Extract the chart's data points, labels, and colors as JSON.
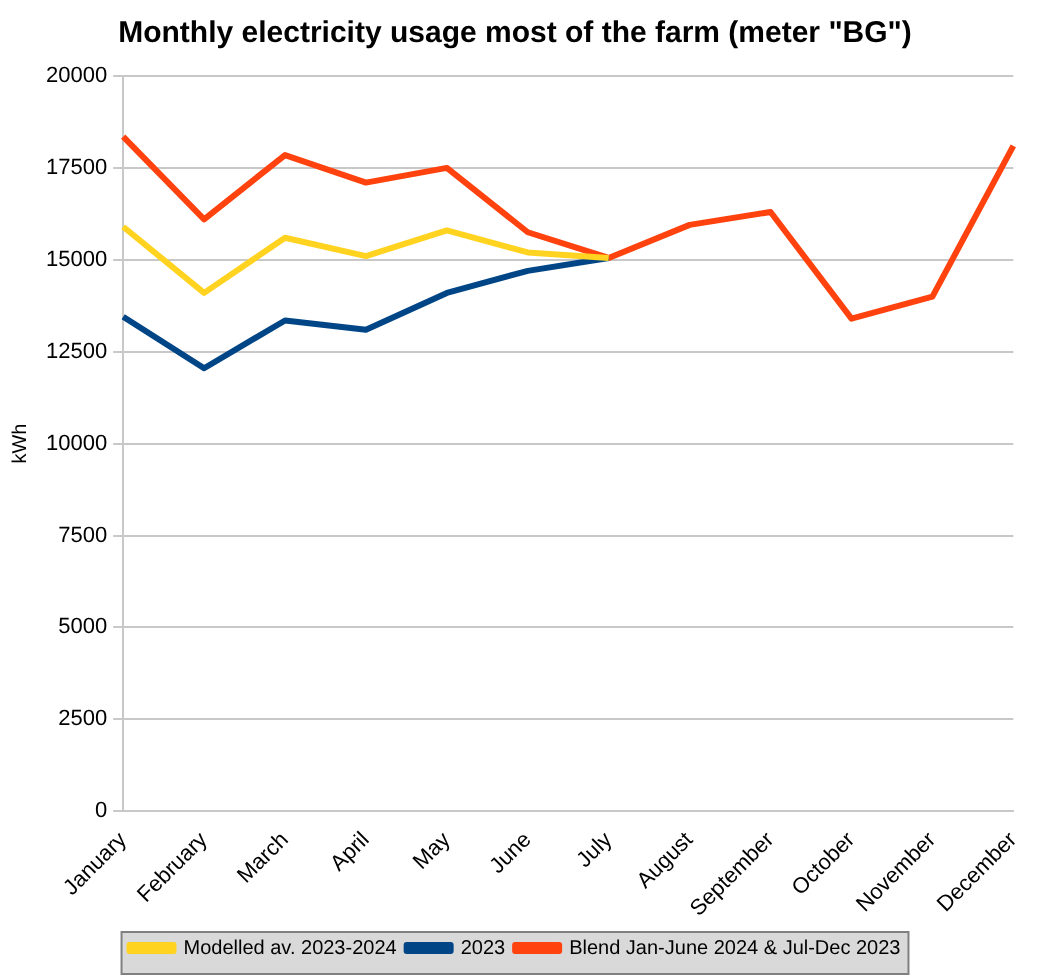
{
  "chart_data": {
    "type": "line",
    "title": "Monthly electricity usage most of the farm (meter \"BG\")",
    "ylabel": "kWh",
    "categories": [
      "January",
      "February",
      "March",
      "April",
      "May",
      "June",
      "July",
      "August",
      "September",
      "October",
      "November",
      "December"
    ],
    "series": [
      {
        "name": "Modelled av. 2023-2024",
        "color": "#ffd320",
        "values": [
          15900,
          14100,
          15600,
          15100,
          15800,
          15200,
          15050,
          null,
          null,
          null,
          null,
          null
        ]
      },
      {
        "name": "2023",
        "color": "#004586",
        "values": [
          13450,
          12050,
          13350,
          13100,
          14100,
          14700,
          15050,
          null,
          null,
          null,
          null,
          null
        ]
      },
      {
        "name": "Blend Jan-June 2024 & Jul-Dec 2023",
        "color": "#ff420e",
        "values": [
          18350,
          16100,
          17850,
          17100,
          17500,
          15750,
          15050,
          15950,
          16300,
          13400,
          14000,
          18100
        ]
      }
    ],
    "ylim": [
      0,
      20000
    ],
    "yticks": [
      0,
      2500,
      5000,
      7500,
      10000,
      12500,
      15000,
      17500,
      20000
    ],
    "grid": "y",
    "legend": "bottom",
    "marker": "none",
    "line_style": "solid"
  }
}
